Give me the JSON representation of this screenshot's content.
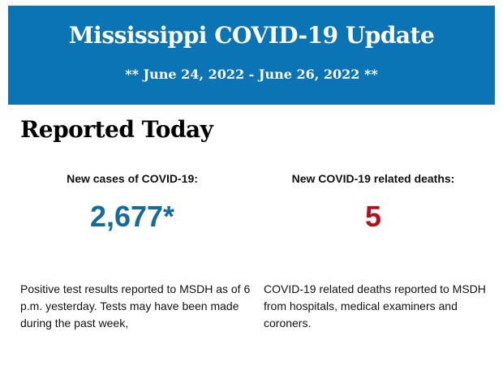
{
  "banner": {
    "title": "Mississippi COVID-19 Update",
    "date_range": "** June 24, 2022 - June 26, 2022 **"
  },
  "section_title": "Reported Today",
  "cases": {
    "label": "New cases of COVID-19:",
    "value": "2,677*",
    "description": "Positive test results reported to MSDH as of 6 p.m. yesterday. Tests may have been made during the past week,",
    "color": "#166b9a"
  },
  "deaths": {
    "label": "New COVID-19 related deaths:",
    "value": "5",
    "description": "COVID-19 related deaths reported to MSDH from hospitals, medical examiners and coroners.",
    "color": "#b3121c"
  },
  "colors": {
    "banner": "#0b74b5"
  }
}
